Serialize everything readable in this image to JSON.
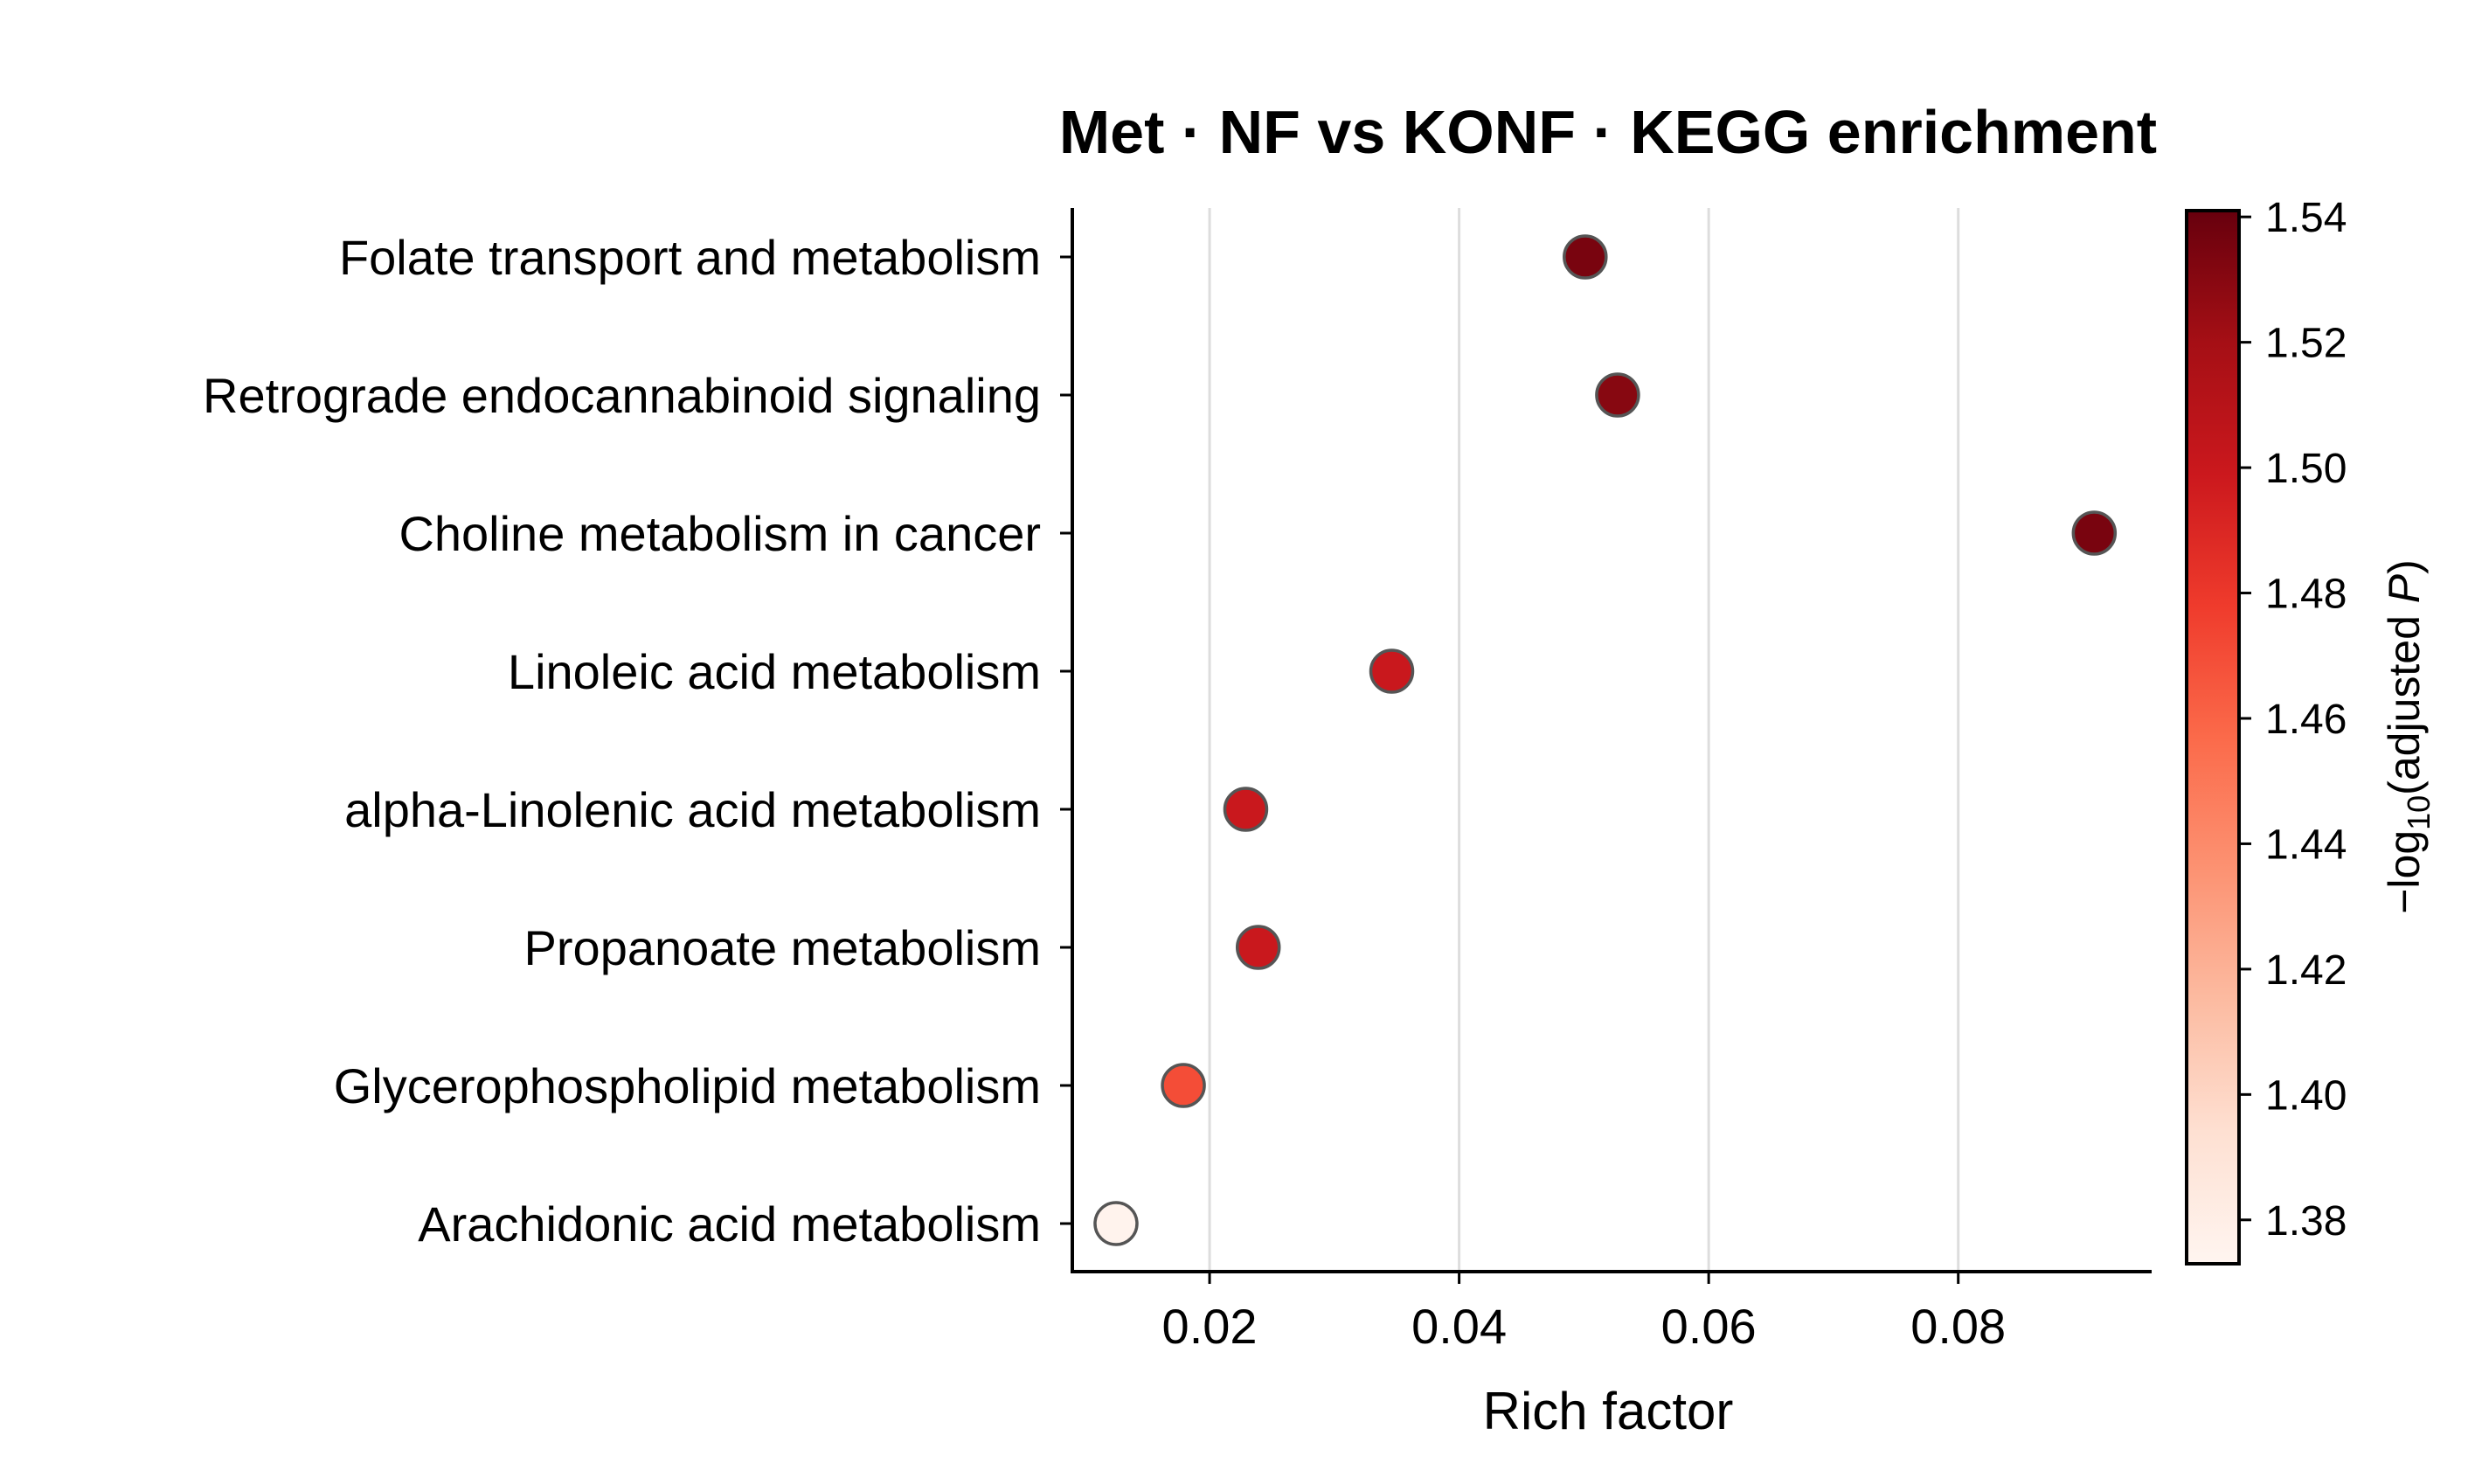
{
  "chart_data": {
    "type": "scatter",
    "title": "Met · NF vs KONF · KEGG enrichment",
    "xlabel": "Rich factor",
    "ylabel": "",
    "xlim": [
      0.009,
      0.0955
    ],
    "xticks": [
      0.02,
      0.04,
      0.06,
      0.08
    ],
    "x_tick_labels": [
      "0.02",
      "0.04",
      "0.06",
      "0.08"
    ],
    "grid": "vertical",
    "categories": [
      "Folate transport and metabolism",
      "Retrograde endocannabinoid signaling",
      "Choline metabolism in cancer",
      "Linoleic acid metabolism",
      "alpha-Linolenic acid metabolism",
      "Propanoate metabolism",
      "Glycerophospholipid metabolism",
      "Arachidonic acid metabolism"
    ],
    "points": [
      {
        "category": "Folate transport and metabolism",
        "x": 0.0501,
        "neg_log10_padj": 1.535
      },
      {
        "category": "Retrograde endocannabinoid signaling",
        "x": 0.0527,
        "neg_log10_padj": 1.53
      },
      {
        "category": "Choline metabolism in cancer",
        "x": 0.0909,
        "neg_log10_padj": 1.535
      },
      {
        "category": "Linoleic acid metabolism",
        "x": 0.0346,
        "neg_log10_padj": 1.5
      },
      {
        "category": "alpha-Linolenic acid metabolism",
        "x": 0.0229,
        "neg_log10_padj": 1.5
      },
      {
        "category": "Propanoate metabolism",
        "x": 0.0239,
        "neg_log10_padj": 1.5
      },
      {
        "category": "Glycerophospholipid metabolism",
        "x": 0.0179,
        "neg_log10_padj": 1.47
      },
      {
        "category": "Arachidonic acid metabolism",
        "x": 0.0125,
        "neg_log10_padj": 1.375
      }
    ],
    "colorbar": {
      "label_prefix": "−log",
      "label_sub": "10",
      "label_mid": "(adjusted ",
      "label_italic": "P",
      "label_suffix": ")",
      "range": [
        1.373,
        1.541
      ],
      "ticks": [
        1.38,
        1.4,
        1.42,
        1.44,
        1.46,
        1.48,
        1.5,
        1.52,
        1.54
      ],
      "tick_labels": [
        "1.38",
        "1.40",
        "1.42",
        "1.44",
        "1.46",
        "1.48",
        "1.50",
        "1.52",
        "1.54"
      ],
      "colormap": "Reds",
      "color_stops": [
        "#fff5f0",
        "#fee0d2",
        "#fcbba1",
        "#fc9272",
        "#fb6a4a",
        "#ef3b2c",
        "#cb181d",
        "#a50f15",
        "#67000d"
      ]
    }
  }
}
